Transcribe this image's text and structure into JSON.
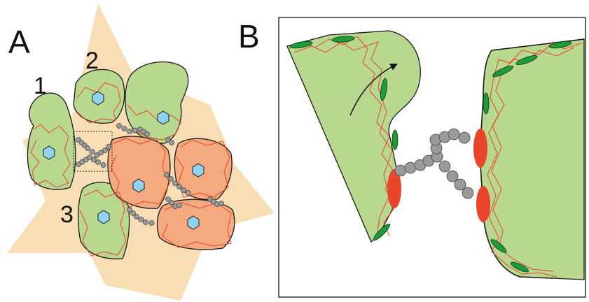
{
  "panel_a": {
    "label": "A",
    "cell_labels": [
      "1",
      "2",
      "3"
    ]
  },
  "panel_b": {
    "label": "B"
  }
}
